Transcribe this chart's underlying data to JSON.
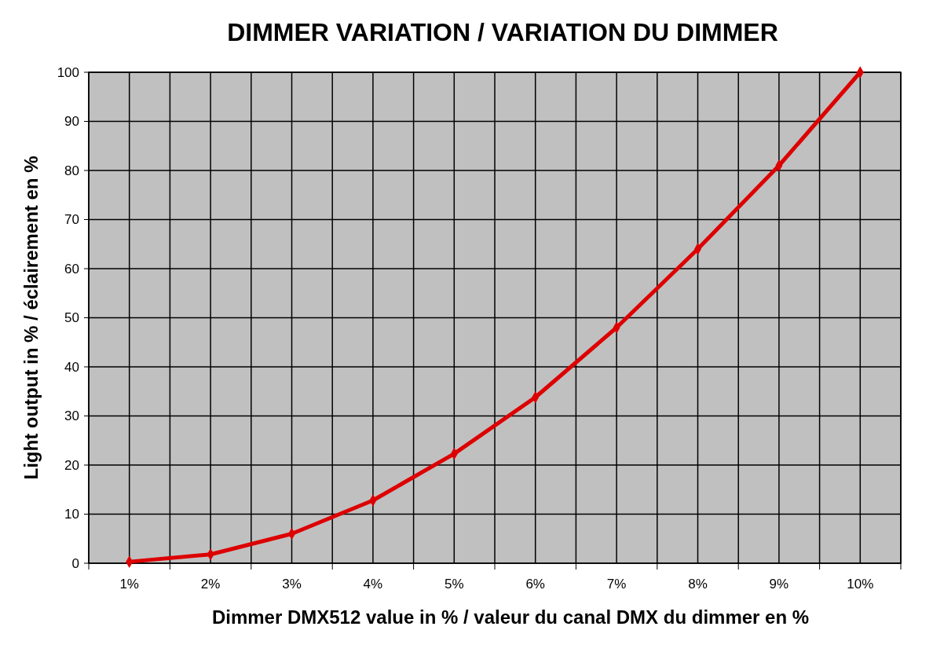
{
  "chart_data": {
    "type": "line",
    "title": "DIMMER VARIATION / VARIATION DU DIMMER",
    "xlabel": "Dimmer DMX512 value in % / valeur du canal DMX du dimmer en %",
    "ylabel": "Light output in % / éclairement en %",
    "categories": [
      "1%",
      "2%",
      "3%",
      "4%",
      "5%",
      "6%",
      "7%",
      "8%",
      "9%",
      "10%"
    ],
    "series": [
      {
        "color": "#dd0000",
        "values": [
          0.3,
          1.8,
          6,
          12.8,
          22.3,
          33.8,
          48,
          64,
          81,
          100
        ]
      }
    ],
    "ylim": [
      0,
      100
    ],
    "yticks": [
      0,
      10,
      20,
      30,
      40,
      50,
      60,
      70,
      80,
      90,
      100
    ],
    "grid": true,
    "marker": "diamond",
    "line_style": "solid"
  }
}
